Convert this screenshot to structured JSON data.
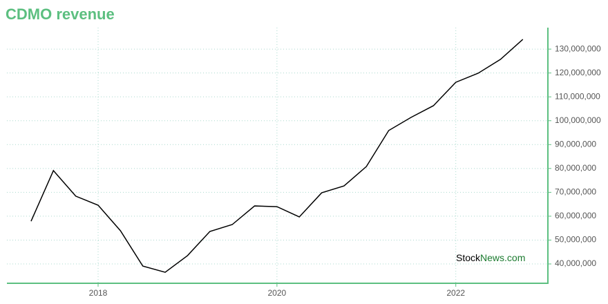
{
  "chart_data": {
    "type": "line",
    "title": "CDMO revenue",
    "x": [
      2017.25,
      2017.5,
      2017.75,
      2018.0,
      2018.25,
      2018.5,
      2018.75,
      2019.0,
      2019.25,
      2019.5,
      2019.75,
      2020.0,
      2020.25,
      2020.5,
      2020.75,
      2021.0,
      2021.25,
      2021.5,
      2021.75,
      2022.0,
      2022.25,
      2022.5,
      2022.75
    ],
    "series": [
      {
        "name": "CDMO revenue",
        "color": "#000000",
        "values": [
          57900000,
          79100000,
          68400000,
          64600000,
          53900000,
          39100000,
          36500000,
          43500000,
          53600000,
          56500000,
          64300000,
          64000000,
          59700000,
          69800000,
          72700000,
          80800000,
          95900000,
          101400000,
          106300000,
          116100000,
          119900000,
          125700000,
          134100000
        ]
      }
    ],
    "xlim": [
      2016.98,
      2023.03
    ],
    "xticks": [
      2018,
      2020,
      2022
    ],
    "ylim": [
      31900000,
      139000000
    ],
    "yticks": [
      {
        "value": 40000000,
        "label": "40,000,000"
      },
      {
        "value": 50000000,
        "label": "50,000,000"
      },
      {
        "value": 60000000,
        "label": "60,000,000"
      },
      {
        "value": 70000000,
        "label": "70,000,000"
      },
      {
        "value": 80000000,
        "label": "80,000,000"
      },
      {
        "value": 90000000,
        "label": "90,000,000"
      },
      {
        "value": 100000000,
        "label": "100,000,000"
      },
      {
        "value": 110000000,
        "label": "110,000,000"
      },
      {
        "value": 120000000,
        "label": "120,000,000"
      },
      {
        "value": 130000000,
        "label": "130,000,000"
      }
    ],
    "grid": true,
    "axis_color": "#5cbf80",
    "watermark": {
      "brand": "Stock",
      "suffix": "News.com"
    }
  }
}
